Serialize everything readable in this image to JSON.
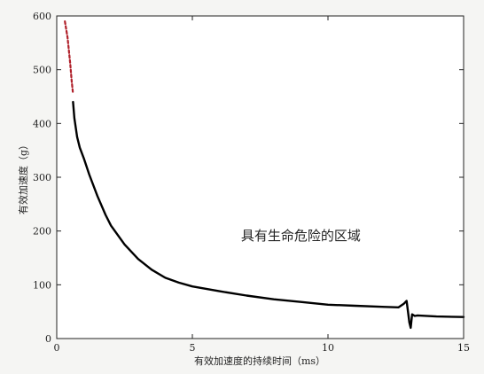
{
  "chart_data": {
    "type": "line",
    "title": "",
    "xlabel": "有效加速度的持续时间（ms）",
    "ylabel": "有效加速度（g）",
    "xlim": [
      0,
      15
    ],
    "ylim": [
      0,
      600
    ],
    "xticks": [
      0,
      5,
      10,
      15
    ],
    "yticks": [
      0,
      100,
      200,
      300,
      400,
      500,
      600
    ],
    "grid": false,
    "annotations": [
      {
        "text": "具有生命危险的区域",
        "x": 9.0,
        "y": 183
      }
    ],
    "series": [
      {
        "style": "dashed",
        "color": "#b0202a",
        "x": [
          0.3,
          0.4,
          0.5,
          0.55,
          0.6
        ],
        "y": [
          590,
          560,
          510,
          480,
          455
        ]
      },
      {
        "style": "solid",
        "color": "#000000",
        "x": [
          0.6,
          0.65,
          0.75,
          0.85,
          1.0,
          1.2,
          1.5,
          1.8,
          2.0,
          2.5,
          3.0,
          3.5,
          4.0,
          4.5,
          5.0,
          6.0,
          7.0,
          8.0,
          9.0,
          10.0,
          11.0,
          12.0,
          12.6,
          12.8,
          12.9,
          13.0,
          13.05,
          13.1,
          13.2,
          13.3,
          14.0,
          15.0
        ],
        "y": [
          440,
          410,
          375,
          355,
          335,
          305,
          265,
          230,
          210,
          175,
          148,
          128,
          113,
          104,
          97,
          88,
          80,
          73,
          68,
          63,
          61,
          59,
          58,
          65,
          70,
          30,
          20,
          45,
          42,
          43,
          41,
          40
        ]
      }
    ]
  }
}
